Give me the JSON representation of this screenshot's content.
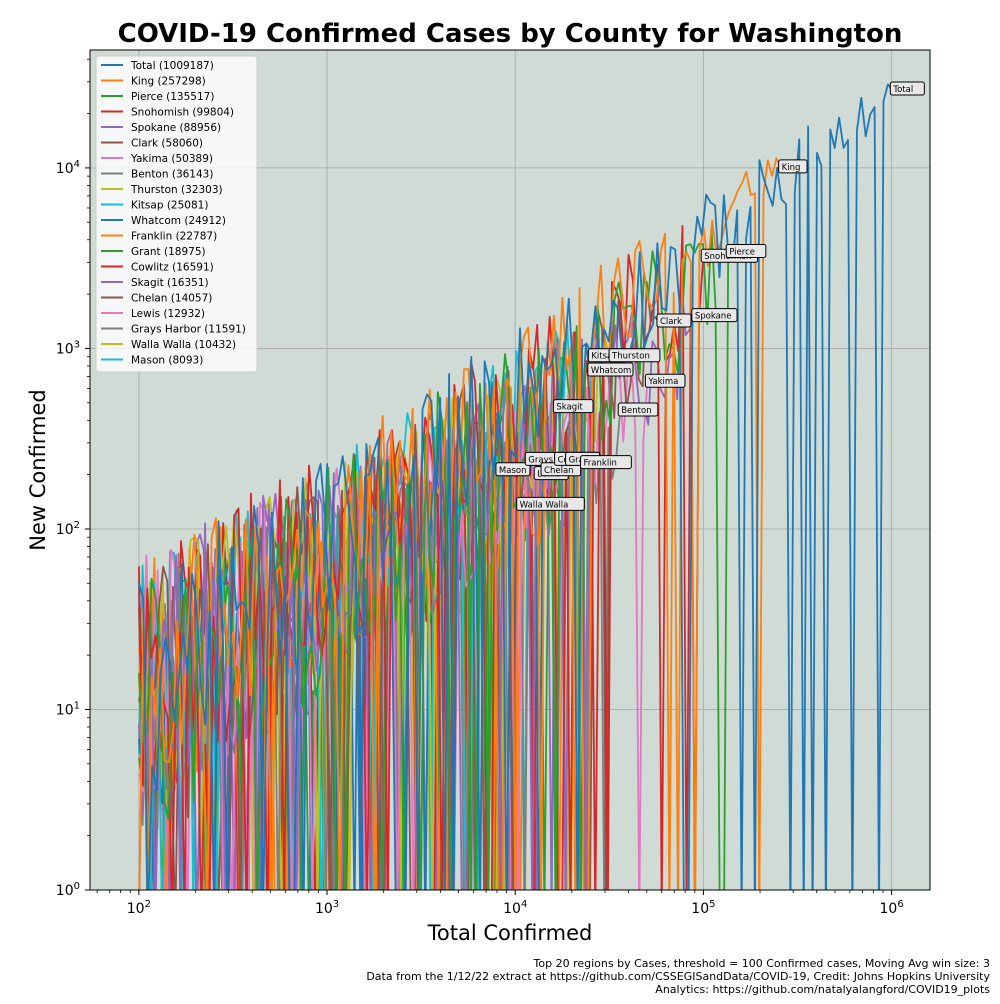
{
  "chart_data": {
    "type": "line",
    "title": "COVID-19  Confirmed Cases by County for Washington",
    "xlabel": "Total Confirmed",
    "ylabel": "New Confirmed",
    "xscale": "log",
    "yscale": "log",
    "xlim": [
      55,
      1600000
    ],
    "ylim": [
      1,
      45000
    ],
    "x_ticks": [
      100,
      1000,
      10000,
      100000,
      1000000
    ],
    "x_tick_labels": [
      {
        "base": "10",
        "exp": "2"
      },
      {
        "base": "10",
        "exp": "3"
      },
      {
        "base": "10",
        "exp": "4"
      },
      {
        "base": "10",
        "exp": "5"
      },
      {
        "base": "10",
        "exp": "6"
      }
    ],
    "y_ticks": [
      1,
      10,
      100,
      1000,
      10000
    ],
    "y_tick_labels": [
      {
        "base": "10",
        "exp": "0"
      },
      {
        "base": "10",
        "exp": "1"
      },
      {
        "base": "10",
        "exp": "2"
      },
      {
        "base": "10",
        "exp": "3"
      },
      {
        "base": "10",
        "exp": "4"
      }
    ],
    "grid": true,
    "legend_position": "top-left",
    "background": "#d0dbd5",
    "series": [
      {
        "name": "Total (1009187)",
        "label": "Total",
        "total": 1009187,
        "peak": 27000,
        "start": 100,
        "color": "#1f77b4"
      },
      {
        "name": "King (257298)",
        "label": "King",
        "total": 257298,
        "peak": 10000,
        "start": 100,
        "color": "#ff7f0e"
      },
      {
        "name": "Pierce (135517)",
        "label": "Pierce",
        "total": 135517,
        "peak": 3400,
        "start": 100,
        "color": "#2ca02c"
      },
      {
        "name": "Snohomish (99804)",
        "label": "Snohomish",
        "total": 99804,
        "peak": 3200,
        "start": 100,
        "color": "#d62728"
      },
      {
        "name": "Spokane (88956)",
        "label": "Spokane",
        "total": 88956,
        "peak": 1500,
        "start": 100,
        "color": "#9467bd"
      },
      {
        "name": "Clark (58060)",
        "label": "Clark",
        "total": 58060,
        "peak": 1400,
        "start": 100,
        "color": "#8c564b"
      },
      {
        "name": "Yakima (50389)",
        "label": "Yakima",
        "total": 50389,
        "peak": 650,
        "start": 100,
        "color": "#e377c2"
      },
      {
        "name": "Benton (36143)",
        "label": "Benton",
        "total": 36143,
        "peak": 450,
        "start": 100,
        "color": "#7f7f7f"
      },
      {
        "name": "Thurston (32303)",
        "label": "Thurston",
        "total": 32303,
        "peak": 900,
        "start": 100,
        "color": "#bcbd22"
      },
      {
        "name": "Kitsap (25081)",
        "label": "Kitsap",
        "total": 25081,
        "peak": 900,
        "start": 100,
        "color": "#17becf"
      },
      {
        "name": "Whatcom (24912)",
        "label": "Whatcom",
        "total": 24912,
        "peak": 750,
        "start": 100,
        "color": "#1f77b4"
      },
      {
        "name": "Franklin (22787)",
        "label": "Franklin",
        "total": 22787,
        "peak": 230,
        "start": 100,
        "color": "#ff7f0e"
      },
      {
        "name": "Grant (18975)",
        "label": "Grant",
        "total": 18975,
        "peak": 240,
        "start": 100,
        "color": "#2ca02c"
      },
      {
        "name": "Cowlitz (16591)",
        "label": "Cowlitz",
        "total": 16591,
        "peak": 240,
        "start": 100,
        "color": "#d62728"
      },
      {
        "name": "Skagit (16351)",
        "label": "Skagit",
        "total": 16351,
        "peak": 470,
        "start": 100,
        "color": "#9467bd"
      },
      {
        "name": "Chelan (14057)",
        "label": "Chelan",
        "total": 14057,
        "peak": 210,
        "start": 100,
        "color": "#8c564b"
      },
      {
        "name": "Lewis (12932)",
        "label": "Lewis",
        "total": 12932,
        "peak": 200,
        "start": 100,
        "color": "#e377c2"
      },
      {
        "name": "Grays Harbor (11591)",
        "label": "Grays Harbor",
        "total": 11591,
        "peak": 240,
        "start": 100,
        "color": "#7f7f7f"
      },
      {
        "name": "Walla Walla (10432)",
        "label": "Walla Walla",
        "total": 10432,
        "peak": 135,
        "start": 100,
        "color": "#bcbd22"
      },
      {
        "name": "Mason (8093)",
        "label": "Mason",
        "total": 8093,
        "peak": 210,
        "start": 100,
        "color": "#17becf"
      }
    ]
  },
  "footer": {
    "line1": "Top 20 regions by Cases, threshold = 100 Confirmed cases, Moving Avg win size: 3",
    "line2": "Data from the 1/12/22 extract at https://github.com/CSSEGISandData/COVID-19, Credit: Johns Hopkins University",
    "line3": "Analytics: https://github.com/natalyalangford/COVID19_plots"
  }
}
